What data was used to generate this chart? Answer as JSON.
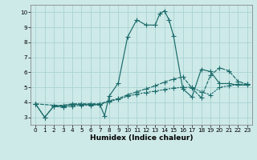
{
  "xlabel": "Humidex (Indice chaleur)",
  "xlim": [
    -0.5,
    23.5
  ],
  "ylim": [
    2.5,
    10.5
  ],
  "xticks": [
    0,
    1,
    2,
    3,
    4,
    5,
    6,
    7,
    8,
    9,
    10,
    11,
    12,
    13,
    14,
    15,
    16,
    17,
    18,
    19,
    20,
    21,
    22,
    23
  ],
  "yticks": [
    3,
    4,
    5,
    6,
    7,
    8,
    9,
    10
  ],
  "background_color": "#cde9e8",
  "grid_color": "#a8d4d2",
  "line_color": "#1a6b6a",
  "curve1_x": [
    0,
    1,
    2,
    3,
    4,
    5,
    6,
    7,
    7.5,
    8,
    9,
    10,
    11,
    12,
    13,
    13.5,
    14,
    14.5,
    15,
    16,
    17,
    18,
    19,
    20,
    21,
    22,
    23
  ],
  "curve1_y": [
    3.9,
    3.0,
    3.75,
    3.75,
    3.85,
    3.85,
    3.85,
    3.85,
    3.1,
    4.4,
    5.3,
    8.35,
    9.5,
    9.15,
    9.15,
    9.9,
    10.1,
    9.5,
    8.4,
    4.9,
    4.35,
    6.2,
    6.05,
    5.25,
    5.25,
    5.15,
    5.15
  ],
  "curve2_x": [
    0,
    1,
    2,
    3,
    4,
    5,
    6,
    7,
    8,
    9,
    10,
    11,
    12,
    13,
    14,
    15,
    16,
    17,
    18,
    19,
    20,
    21,
    22,
    23
  ],
  "curve2_y": [
    3.9,
    3.0,
    3.75,
    3.65,
    3.75,
    3.8,
    3.8,
    3.85,
    4.05,
    4.2,
    4.4,
    4.55,
    4.65,
    4.75,
    4.85,
    4.95,
    5.0,
    5.0,
    4.7,
    4.5,
    5.0,
    5.1,
    5.2,
    5.2
  ],
  "curve3_x": [
    0,
    2,
    3,
    4,
    5,
    6,
    7,
    8,
    9,
    10,
    11,
    12,
    13,
    14,
    15,
    16,
    17,
    18,
    19,
    20,
    21,
    22,
    23
  ],
  "curve3_y": [
    3.9,
    3.8,
    3.8,
    3.9,
    3.9,
    3.9,
    3.9,
    4.1,
    4.25,
    4.5,
    4.7,
    4.9,
    5.1,
    5.35,
    5.55,
    5.7,
    4.95,
    4.3,
    5.8,
    6.3,
    6.1,
    5.4,
    5.2
  ],
  "xlabel_fontsize": 6.5,
  "tick_fontsize": 5.2
}
